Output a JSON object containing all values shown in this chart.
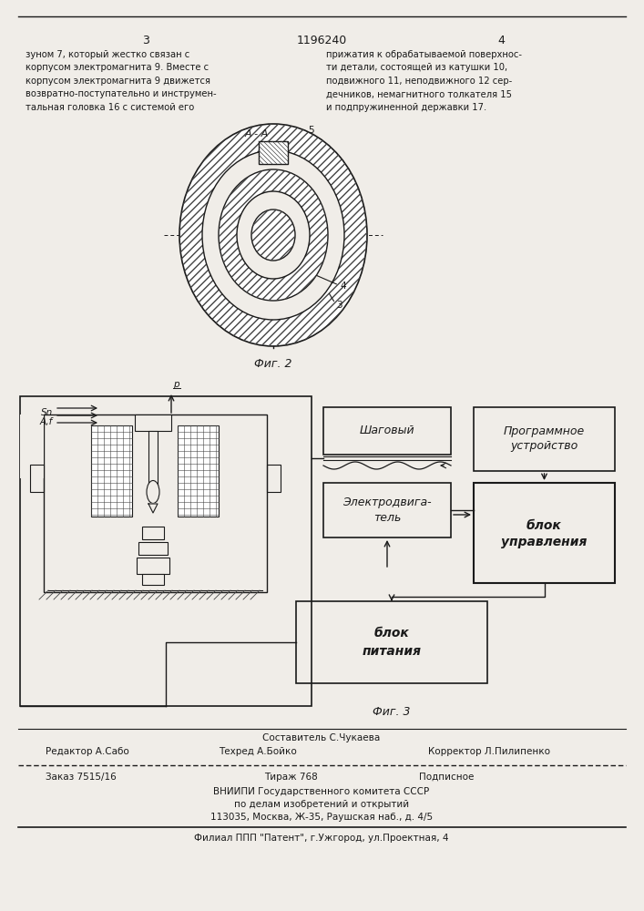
{
  "bg_color": "#f0ede8",
  "title_number": "1196240",
  "page_numbers": [
    "3",
    "4"
  ],
  "text_left": "зуном 7, который жестко связан с\nкорпусом электромагнита 9. Вместе с\nкорпусом электромагнита 9 движется\nвозвратно-поступательно и инструмен-\nтальная головка 16 с системой его",
  "text_right": "прижатия к обрабатываемой поверхнос-\nти детали, состоящей из катушки 10,\nподвижного 11, неподвижного 12 сер-\nдечников, немагнитного толкателя 15\nи подпружиненной державки 17.",
  "fig2_label": "Фиг. 2",
  "fig3_label": "Фиг. 3",
  "fig2_annotation_AA": "A - A",
  "fig2_label3": "3",
  "fig2_label4": "4",
  "fig2_label5": "5",
  "block_shagoviy": "Шаговый",
  "block_programnoe": "Программное\nустройство",
  "block_electrodvig1": "Электродвига-",
  "block_electrodvig2": "тель",
  "block_blok_upr1": "блок",
  "block_blok_upr2": "управления",
  "block_blok_pit1": "блок",
  "block_blok_pit2": "питания",
  "editor": "Редактор А.Сабо",
  "sostavitel": "Составитель С.Чукаева",
  "tehred": "Техред А.Бойко",
  "korrektor": "Корректор Л.Пилипенко",
  "order_line": "Заказ 7515/16        Тираж 768          Подписное",
  "vniipi_line1": "ВНИИПИ Государственного комитета СССР",
  "vniipi_line2": "по делам изобретений и открытий",
  "vniipi_line3": "113035, Москва, Ж-35, Раушская наб., д. 4/5",
  "patent_line": "Филиал ППП \"Патент\", г.Ужгород, ул.Проектная, 4",
  "hatch_color": "#444444",
  "line_color": "#1a1a1a",
  "text_color": "#1a1a1a",
  "label_Sn": "Sn",
  "label_p": "p",
  "label_AF": "A,f"
}
